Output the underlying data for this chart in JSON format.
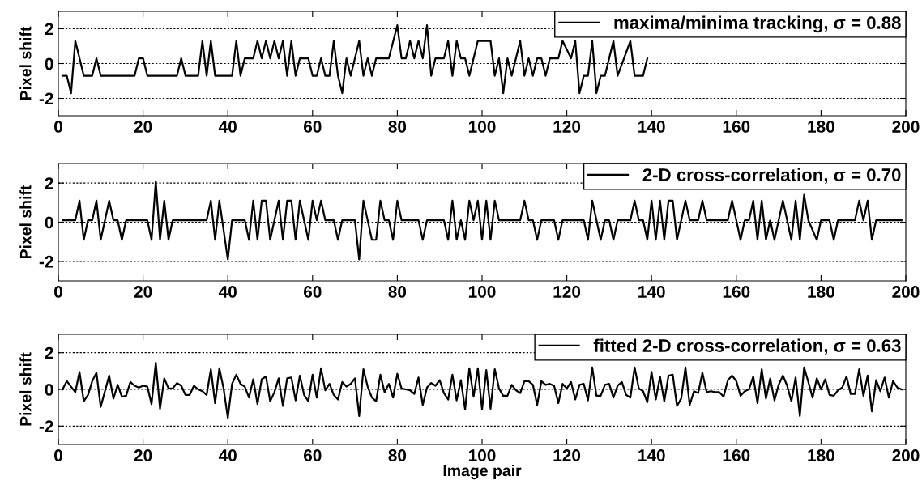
{
  "chart_data": [
    {
      "type": "line",
      "ylabel": "Pixel shift",
      "xlim": [
        0,
        200
      ],
      "ylim": [
        -3,
        3
      ],
      "xticks": [
        0,
        20,
        40,
        60,
        80,
        100,
        120,
        140,
        160,
        180,
        200
      ],
      "yticks": [
        -2,
        0,
        2
      ],
      "grid": "y",
      "legend": "top right",
      "series": [
        {
          "name": "maxima/minima tracking, σ = 0.88",
          "color": "#000000",
          "x": [
            1,
            2,
            3,
            4,
            6,
            8,
            9,
            10,
            18,
            19,
            20,
            21,
            28,
            29,
            30,
            33,
            34,
            35,
            36,
            37,
            41,
            42,
            43,
            44,
            46,
            47,
            48,
            49,
            50,
            51,
            52,
            53,
            54,
            55,
            56,
            57,
            59,
            60,
            61,
            62,
            63,
            64,
            65,
            66,
            67,
            68,
            69,
            70,
            71,
            72,
            73,
            74,
            75,
            78,
            80,
            81,
            82,
            83,
            84,
            85,
            86,
            87,
            88,
            89,
            91,
            92,
            93,
            94,
            95,
            96,
            97,
            99,
            102,
            103,
            104,
            105,
            106,
            107,
            109,
            110,
            111,
            112,
            113,
            114,
            115,
            116,
            118,
            119,
            121,
            122,
            123,
            124,
            125,
            126,
            127,
            128,
            129,
            131,
            132,
            135,
            136,
            138,
            139
          ],
          "values": [
            -0.7,
            -0.7,
            -1.7,
            1.3,
            -0.7,
            -0.7,
            0.3,
            -0.7,
            -0.7,
            0.3,
            0.3,
            -0.7,
            -0.7,
            0.3,
            -0.7,
            -0.7,
            1.3,
            -0.7,
            1.3,
            -0.7,
            -0.7,
            1.3,
            -0.7,
            0.3,
            0.3,
            1.3,
            0.3,
            1.3,
            0.3,
            1.3,
            0.3,
            1.3,
            -0.7,
            1.3,
            -0.7,
            0.3,
            0.3,
            -0.7,
            -0.7,
            0.3,
            -0.7,
            -0.7,
            1.3,
            -0.7,
            -1.7,
            0.3,
            -0.7,
            0.3,
            1.3,
            -0.7,
            0.3,
            -0.7,
            0.3,
            0.3,
            2.2,
            0.3,
            0.3,
            1.3,
            0.3,
            1.3,
            0.3,
            2.2,
            -0.7,
            0.3,
            0.3,
            1.3,
            -0.7,
            1.3,
            0.3,
            0.3,
            -0.7,
            1.3,
            1.3,
            -0.7,
            0.3,
            -1.7,
            0.3,
            -0.7,
            1.3,
            -0.7,
            0.3,
            -0.7,
            0.3,
            0.3,
            -0.7,
            0.3,
            0.3,
            1.3,
            0.3,
            1.3,
            -1.7,
            -0.7,
            -0.7,
            1.3,
            -1.7,
            -0.7,
            -0.7,
            1.3,
            -0.7,
            1.3,
            -0.7,
            -0.7,
            0.3
          ]
        }
      ]
    },
    {
      "type": "line",
      "ylabel": "Pixel shift",
      "xlim": [
        0,
        200
      ],
      "ylim": [
        -3,
        3
      ],
      "xticks": [
        0,
        20,
        40,
        60,
        80,
        100,
        120,
        140,
        160,
        180,
        200
      ],
      "yticks": [
        -2,
        0,
        2
      ],
      "grid": "y",
      "legend": "top right",
      "series": [
        {
          "name": "2-D cross-correlation, σ = 0.70",
          "color": "#000000",
          "x": [
            1,
            4,
            5,
            6,
            7,
            8,
            9,
            10,
            12,
            13,
            14,
            15,
            16,
            21,
            22,
            23,
            24,
            25,
            26,
            27,
            35,
            36,
            37,
            38,
            40,
            41,
            44,
            45,
            46,
            47,
            48,
            49,
            50,
            52,
            53,
            54,
            55,
            56,
            57,
            59,
            60,
            61,
            62,
            63,
            65,
            66,
            67,
            70,
            71,
            72,
            74,
            75,
            76,
            77,
            78,
            79,
            80,
            81,
            85,
            86,
            87,
            91,
            92,
            93,
            94,
            95,
            96,
            97,
            98,
            99,
            100,
            101,
            102,
            103,
            104,
            109,
            110,
            111,
            112,
            113,
            114,
            117,
            118,
            119,
            124,
            125,
            126,
            128,
            129,
            130,
            131,
            132,
            135,
            136,
            137,
            138,
            139,
            140,
            141,
            142,
            143,
            144,
            145,
            146,
            148,
            149,
            151,
            152,
            153,
            158,
            159,
            161,
            162,
            163,
            164,
            165,
            166,
            167,
            168,
            169,
            171,
            173,
            174,
            175,
            176,
            177,
            179,
            180,
            182,
            183,
            184,
            188,
            189,
            190,
            191,
            192,
            193,
            199
          ],
          "values": [
            0.1,
            0.1,
            1.1,
            -0.9,
            0.1,
            0.1,
            1.1,
            -0.9,
            1.1,
            0.1,
            0.1,
            -0.9,
            0.1,
            0.1,
            -0.9,
            2.1,
            -0.9,
            1.1,
            -0.9,
            0.1,
            0.1,
            1.1,
            -0.9,
            1.1,
            -1.9,
            0.1,
            0.1,
            -0.9,
            1.1,
            -0.9,
            1.1,
            1.1,
            -0.9,
            1.1,
            -0.9,
            1.1,
            1.1,
            -0.9,
            1.1,
            -0.9,
            1.1,
            0.1,
            1.1,
            0.1,
            0.1,
            -0.9,
            0.1,
            0.1,
            -1.9,
            1.1,
            -0.9,
            -0.9,
            1.1,
            0.1,
            0.1,
            -0.9,
            1.1,
            0.1,
            0.1,
            -0.9,
            0.1,
            0.1,
            -0.9,
            1.1,
            -0.9,
            0.1,
            -0.9,
            1.1,
            0.1,
            1.1,
            -0.9,
            1.1,
            -0.9,
            1.1,
            0.1,
            0.1,
            1.1,
            0.1,
            0.1,
            -0.9,
            0.1,
            0.1,
            -0.9,
            0.1,
            0.1,
            -0.9,
            1.1,
            -0.9,
            0.1,
            0.1,
            -0.9,
            0.1,
            0.1,
            1.1,
            0.1,
            0.1,
            -0.9,
            1.1,
            -0.9,
            1.1,
            -0.9,
            1.1,
            1.1,
            -0.9,
            1.1,
            0.1,
            0.1,
            1.1,
            0.1,
            0.1,
            1.1,
            -0.9,
            0.1,
            0.1,
            1.1,
            -0.9,
            1.1,
            -0.9,
            0.1,
            -0.9,
            1.1,
            -0.9,
            1.1,
            -0.9,
            1.4,
            0.1,
            -0.9,
            0.1,
            0.1,
            -0.9,
            0.1,
            0.1,
            1.1,
            0.1,
            1.1,
            -0.9,
            0.1,
            0.1
          ]
        }
      ]
    },
    {
      "type": "line",
      "ylabel": "Pixel shift",
      "xlabel": "Image pair",
      "xlim": [
        0,
        200
      ],
      "ylim": [
        -3,
        3
      ],
      "xticks": [
        0,
        20,
        40,
        60,
        80,
        100,
        120,
        140,
        160,
        180,
        200
      ],
      "yticks": [
        -2,
        0,
        2
      ],
      "grid": "y",
      "legend": "top right",
      "series": [
        {
          "name": "fitted 2-D cross-correlation, σ = 0.63",
          "color": "#000000",
          "x": [
            1,
            2,
            3,
            4,
            5,
            6,
            7,
            8,
            9,
            10,
            11,
            12,
            13,
            14,
            15,
            16,
            17,
            18,
            19,
            20,
            21,
            22,
            23,
            24,
            25,
            26,
            27,
            28,
            29,
            30,
            31,
            32,
            33,
            34,
            35,
            36,
            37,
            38,
            39,
            40,
            41,
            42,
            43,
            44,
            45,
            46,
            47,
            48,
            49,
            50,
            51,
            52,
            53,
            54,
            55,
            56,
            57,
            58,
            59,
            60,
            61,
            62,
            63,
            64,
            65,
            66,
            67,
            68,
            69,
            70,
            71,
            72,
            73,
            74,
            75,
            76,
            77,
            78,
            79,
            80,
            81,
            82,
            83,
            84,
            85,
            86,
            87,
            88,
            89,
            90,
            91,
            92,
            93,
            94,
            95,
            96,
            97,
            98,
            99,
            100,
            101,
            102,
            103,
            104,
            105,
            106,
            107,
            108,
            109,
            110,
            111,
            112,
            113,
            114,
            115,
            116,
            117,
            118,
            119,
            120,
            121,
            122,
            123,
            124,
            125,
            126,
            127,
            128,
            129,
            130,
            131,
            132,
            133,
            134,
            135,
            136,
            137,
            138,
            139,
            140,
            141,
            142,
            143,
            144,
            145,
            146,
            147,
            148,
            149,
            150,
            151,
            152,
            153,
            154,
            155,
            156,
            157,
            158,
            159,
            160,
            161,
            162,
            163,
            164,
            165,
            166,
            167,
            168,
            169,
            170,
            171,
            172,
            173,
            174,
            175,
            176,
            177,
            178,
            179,
            180,
            181,
            182,
            183,
            184,
            185,
            186,
            187,
            188,
            189,
            190,
            191,
            192,
            193,
            194,
            195,
            196,
            197,
            198,
            199
          ],
          "values": [
            0.0,
            0.45,
            0.15,
            -0.15,
            0.95,
            -0.65,
            -0.3,
            0.45,
            0.9,
            -0.95,
            -0.1,
            0.75,
            -0.5,
            0.25,
            -0.4,
            -0.35,
            0.4,
            0.2,
            0.1,
            0.2,
            0.15,
            -0.8,
            1.45,
            -1.05,
            0.6,
            0.05,
            0.05,
            0.35,
            0.2,
            -0.3,
            -0.3,
            0.2,
            0.0,
            -0.1,
            -0.3,
            1.1,
            -0.75,
            1.15,
            0.05,
            -1.55,
            0.3,
            0.8,
            0.3,
            0.15,
            -0.45,
            0.55,
            -0.8,
            0.55,
            0.7,
            -0.65,
            -0.15,
            0.6,
            -0.9,
            0.6,
            0.65,
            -0.6,
            0.75,
            -0.3,
            -0.65,
            0.8,
            -0.45,
            1.15,
            -0.05,
            0.3,
            -0.3,
            -0.55,
            0.4,
            0.15,
            0.3,
            0.6,
            -1.45,
            1.1,
            0.15,
            -0.45,
            -0.65,
            0.8,
            -0.15,
            0.3,
            -0.45,
            0.85,
            0.05,
            0.0,
            -0.05,
            -0.25,
            0.65,
            -0.85,
            0.1,
            0.35,
            0.2,
            0.5,
            -0.2,
            -0.55,
            0.8,
            -0.6,
            0.5,
            -1.1,
            1.15,
            -0.4,
            1.15,
            -1.1,
            1.05,
            -1.05,
            1.1,
            0.05,
            -0.35,
            -0.35,
            0.25,
            -0.05,
            -0.2,
            0.45,
            0.45,
            0.25,
            -0.85,
            0.45,
            0.25,
            0.3,
            0.2,
            -0.75,
            0.3,
            0.05,
            0.4,
            -0.55,
            0.25,
            0.3,
            -0.6,
            1.2,
            -0.35,
            -0.35,
            0.25,
            0.3,
            -0.45,
            0.2,
            0.4,
            -0.3,
            -0.45,
            1.2,
            0.05,
            -0.1,
            -0.7,
            0.95,
            -0.55,
            0.7,
            -0.65,
            0.75,
            0.8,
            -0.9,
            -0.5,
            1.2,
            -0.85,
            -0.1,
            -0.2,
            0.9,
            -0.15,
            -0.1,
            -0.15,
            -0.15,
            -0.4,
            0.5,
            0.75,
            0.45,
            -0.35,
            -0.1,
            0.0,
            0.7,
            -0.75,
            1.1,
            -0.5,
            0.6,
            -0.6,
            0.25,
            0.75,
            0.2,
            -0.65,
            0.65,
            -1.45,
            1.2,
            0.4,
            -0.45,
            0.6,
            0.0,
            0.55,
            -0.3,
            -0.35,
            -0.05,
            0.1,
            0.7,
            -0.25,
            -0.25,
            1.1,
            -0.35,
            0.75,
            -1.2,
            0.5,
            -0.1,
            0.65,
            -0.45,
            0.45,
            0.1,
            0.0
          ]
        }
      ]
    }
  ]
}
